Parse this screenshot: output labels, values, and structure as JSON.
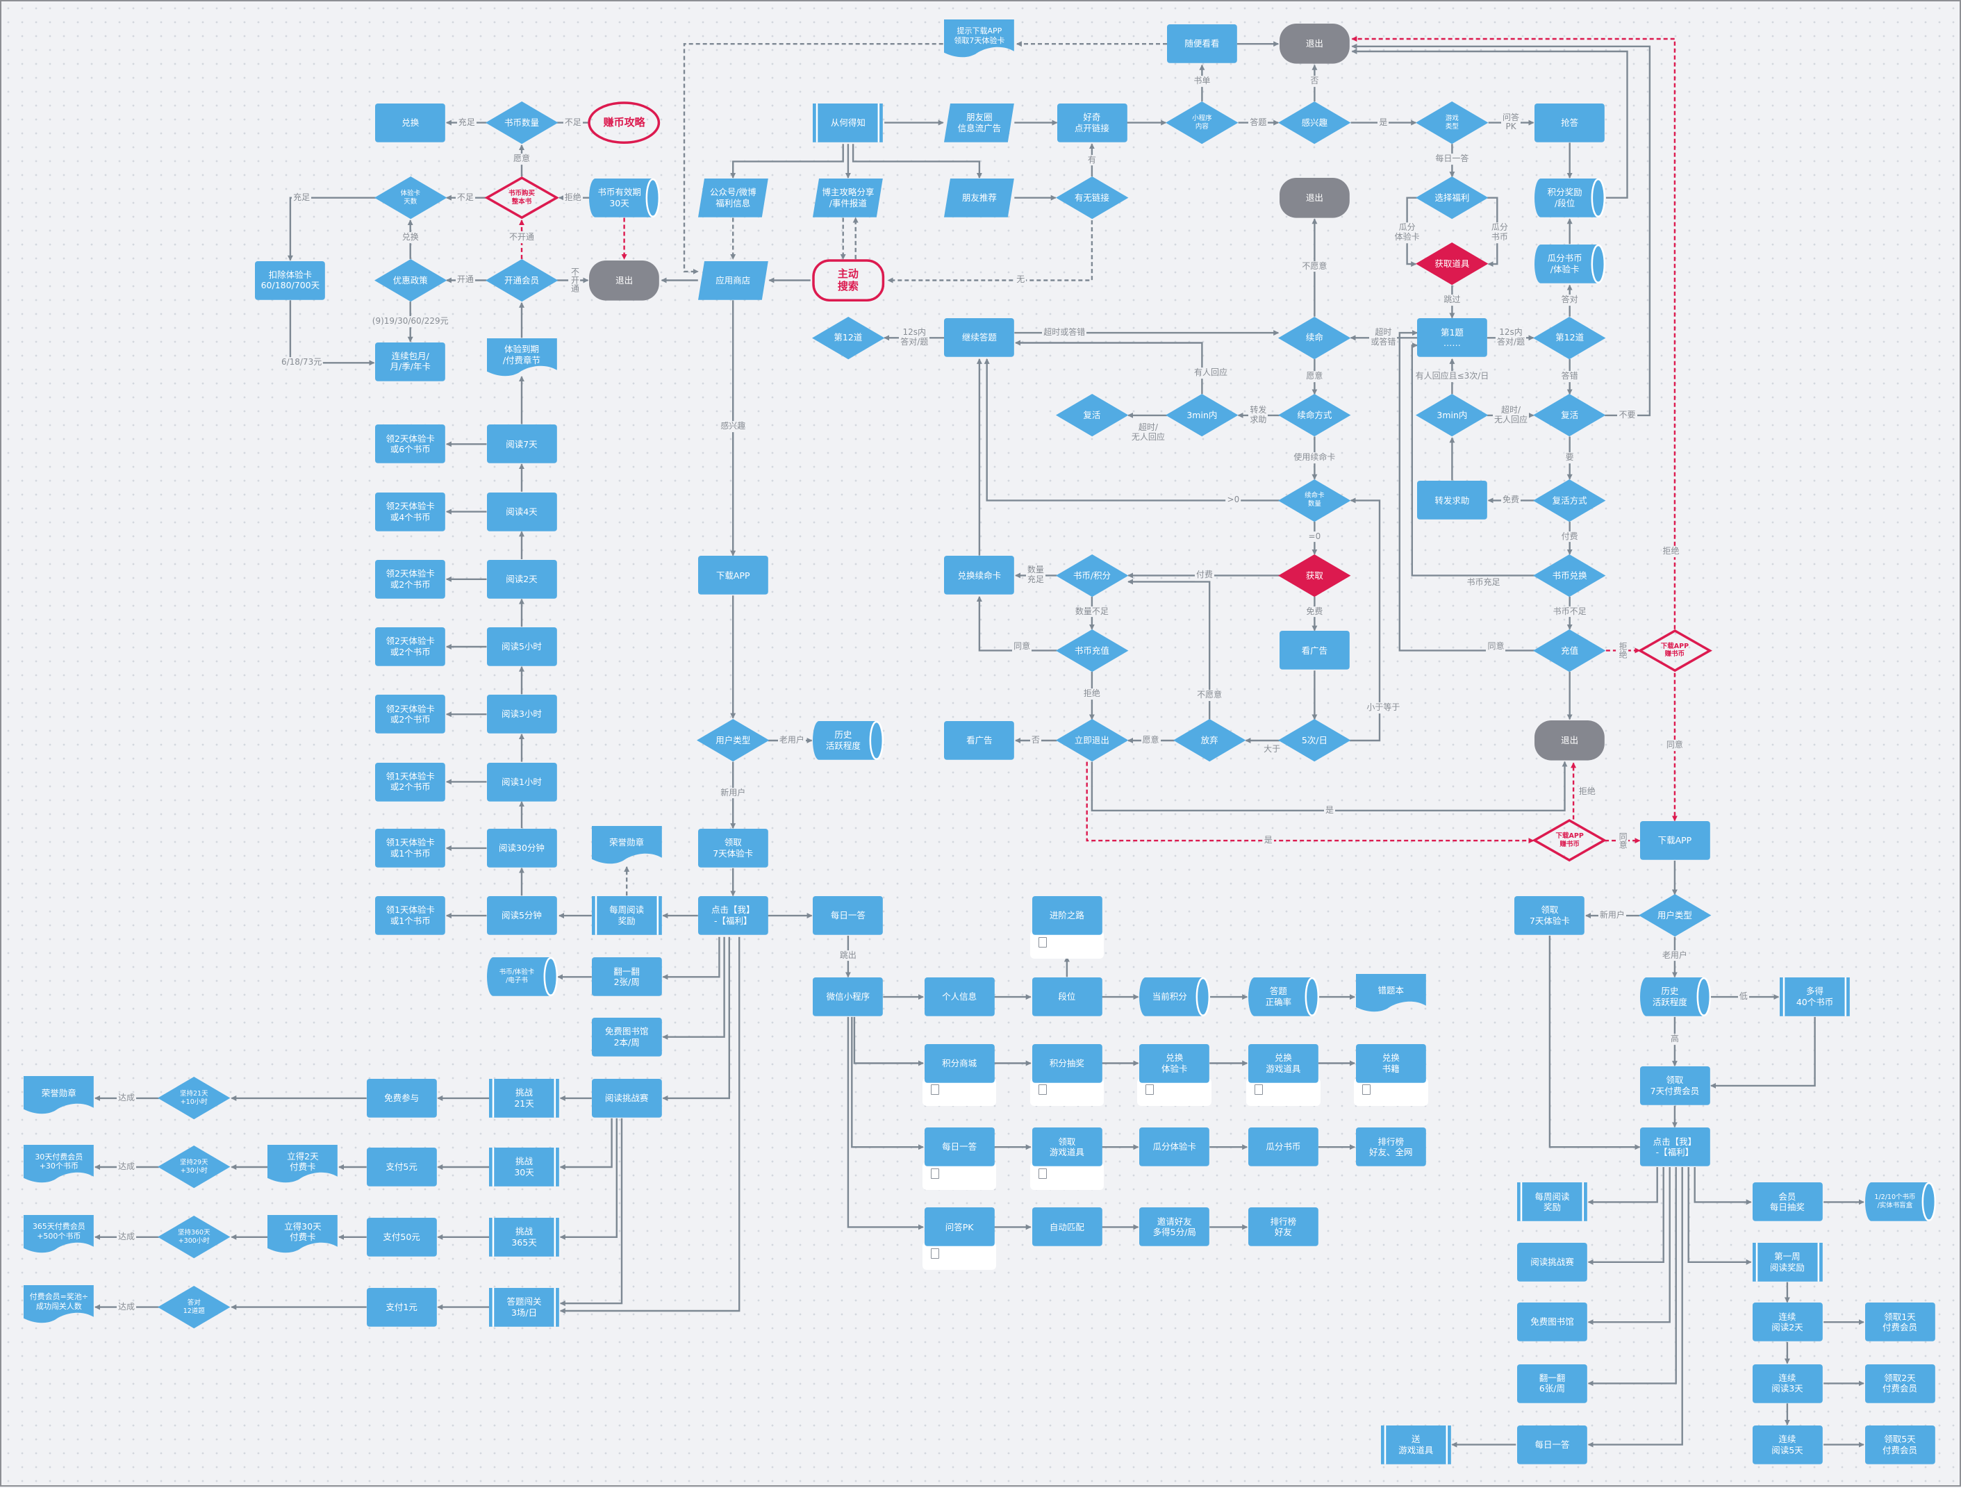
{
  "colors": {
    "process": "#52abe3",
    "terminal": "#85878f",
    "highlight": "#dc1a4f",
    "connector": "#7d8893"
  },
  "nodes": {
    "dh": "兑换",
    "sbsl": "书币数量",
    "zbgl": "赚币攻略",
    "tyk": "体验卡\n天数",
    "sbgm": "书币购买\n整本书",
    "sbyx": "书币有效期\n30天",
    "kc": "扣除体验卡\n60/180/700天",
    "yhzc": "优惠政策",
    "kthy": "开通会员",
    "tc1": "退出",
    "lxby": "连续包月/\n月/季/年卡",
    "tydq": "体验到期\n/付费章节",
    "r7d": "阅读7天",
    "r4d": "阅读4天",
    "r2d": "阅读2天",
    "r5h": "阅读5小时",
    "r3h": "阅读3小时",
    "r1h": "阅读1小时",
    "r30m": "阅读30分钟",
    "r5m": "阅读5分钟",
    "w7d": "领2天体验卡\n或6个书币",
    "w4d": "领2天体验卡\n或4个书币",
    "w2d": "领2天体验卡\n或2个书币",
    "w5h": "领2天体验卡\n或2个书币",
    "w3h": "领2天体验卡\n或2个书币",
    "w1h": "领1天体验卡\n或2个书币",
    "w30m": "领1天体验卡\n或1个书币",
    "w5m": "领1天体验卡\n或1个书币",
    "rysz1": "荣誉勋章",
    "mzyd1": "每周阅读\n奖励",
    "sbtyk": "书币/体验卡\n/电子书",
    "fyf1": "翻一翻\n2张/周",
    "mftsg1": "免费图书馆\n2本/周",
    "ydtzs1": "阅读挑战赛",
    "tz21": "挑战\n21天",
    "mfcy": "免费参与",
    "jc21": "坚持21天\n+10小时",
    "rysz2": "荣誉勋章",
    "tz30": "挑战\n30天",
    "zf5": "支付5元",
    "ld2": "立得2天\n付费卡",
    "jc29": "坚持29天\n+30小时",
    "hy30": "30天付费会员\n+30个书币",
    "tz365": "挑战\n365天",
    "zf50": "支付50元",
    "ld30": "立得30天\n付费卡",
    "jc360": "坚持360天\n+300小时",
    "hy365": "365天付费会员\n+500个书币",
    "dtcg": "答题闯关\n3场/日",
    "zf1": "支付1元",
    "dd12": "答对\n12道题",
    "ffhy": "付费会员=奖池÷\n成功闯关人数",
    "chdz": "从何得知",
    "pyq": "朋友圈\n信息流广告",
    "hq": "好奇\n点开链接",
    "xcx": "小程序\n内容",
    "gxq": "感兴趣",
    "yxlx": "游戏\n类型",
    "qd": "抢答",
    "tsxz": "提示下载APP\n领取7天体验卡",
    "sbkk": "随便看看",
    "tc2": "退出",
    "gzh": "公众号/微博\n福利信息",
    "bz": "博主攻略分享\n/事件报道",
    "pytj": "朋友推荐",
    "ywlj": "有无链接",
    "tc3": "退出",
    "xzfl": "选择福利",
    "jfjl": "积分奖励\n/段位",
    "yysd": "应用商店",
    "zdss": "主动\n搜索",
    "hqdj": "获取道具",
    "gfsb": "瓜分书币\n/体验卡",
    "d12a": "第12道",
    "jxdt": "继续答题",
    "xm": "续命",
    "d1t": "第1题\n……",
    "d12b": "第12道",
    "fh1": "复活",
    "m3a": "3min内",
    "xmfs": "续命方式",
    "m3b": "3min内",
    "fh2": "复活",
    "xmksl": "续命卡\n数量",
    "zfqz": "转发求助",
    "fhfs": "复活方式",
    "dhxmk": "兑换续命卡",
    "sbjf": "书币/积分",
    "hq2": "获取",
    "sbdh": "书币兑换",
    "xzapp1": "下载APP",
    "sbcz": "书币充值",
    "kgg1": "看广告",
    "cz": "充值",
    "xzzb1": "下载APP\n赚书币",
    "yhlx1": "用户类型",
    "hsyy1": "历史\n活跃程度",
    "kgg2": "看广告",
    "ljtc": "立即退出",
    "fq": "放弃",
    "c5": "5次/日",
    "tc4": "退出",
    "lq7a": "领取\n7天体验卡",
    "xzzb2": "下载APP\n赚书币",
    "xzapp2": "下载APP",
    "djwfl1": "点击【我】\n-【福利】",
    "mryd1": "每日一答",
    "jjzl": "进阶之路",
    "wxxcx": "微信小程序",
    "grxx": "个人信息",
    "dw": "段位",
    "dqjf": "当前积分",
    "dtzql": "答题\n正确率",
    "ctb": "错题本",
    "jfsc": "积分商城",
    "jfcj": "积分抽奖",
    "dhtyk": "兑换\n体验卡",
    "dhyxdj": "兑换\n游戏道具",
    "dhsj": "兑换\n书籍",
    "mryd2": "每日一答",
    "lqyxdj": "领取\n游戏道具",
    "gftyk": "瓜分体验卡",
    "gfsb2": "瓜分书币",
    "phb1": "排行榜\n好友、全网",
    "wdpk": "问答PK",
    "zdpp": "自动匹配",
    "yqhy": "邀请好友\n多得5分/局",
    "phb2": "排行榜\n好友",
    "lq7b": "领取\n7天体验卡",
    "yhlx2": "用户类型",
    "hsyy2": "历史\n活跃程度",
    "dd40": "多得\n40个书币",
    "lqff7": "领取\n7天付费会员",
    "djwfl2": "点击【我】\n-【福利】",
    "mzyd2": "每周阅读\n奖励",
    "hymrcj": "会员\n每日抽奖",
    "mh": "1/2/10个书币\n/实体书盲盒",
    "ydtzs2": "阅读挑战赛",
    "dyz": "第一周\n阅读奖励",
    "mftsg2": "免费图书馆",
    "lx2": "连续\n阅读2天",
    "lq1": "领取1天\n付费会员",
    "fyf2": "翻一翻\n6张/周",
    "lx3": "连续\n阅读3天",
    "lq2": "领取2天\n付费会员",
    "syxdj": "送\n游戏道具",
    "mryd3": "每日一答",
    "lx5": "连续\n阅读5天",
    "lq5": "领取5天\n付费会员"
  },
  "edge_labels": [
    "充足",
    "不足",
    "愿意",
    "充足",
    "不足",
    "拒绝",
    "兑换",
    "不开通",
    "开通",
    "不开通",
    "(9)19/30/60/229元",
    "6/18/73元",
    "达成",
    "达成",
    "达成",
    "达成",
    "答题",
    "是",
    "问答\nPK",
    "书单",
    "否",
    "有",
    "无",
    "感兴趣",
    "老用户",
    "新用户",
    "跳出",
    "拒绝",
    "每日一答",
    "瓜分\n体验卡",
    "瓜分\n书币",
    "跳过",
    "答对",
    "12s内\n答对/题",
    "超时\n或答错",
    "答错",
    "要",
    "免费",
    "有人回应且≤3次/日",
    "超时/\n无人回应",
    "付费",
    "书币充足",
    "书币不足",
    "同意",
    "拒绝",
    "不要",
    "同意",
    "是",
    "是",
    "拒绝",
    "同意",
    "新用户",
    "老用户",
    "低",
    "高",
    "12s内\n答对/题",
    "超时或答错",
    "有人回应",
    "愿意",
    "不愿意",
    "转发\n求助",
    "超时/\n无人回应",
    "使用续命卡",
    ">0",
    "=0",
    "付费",
    "数量\n充足",
    "数量不足",
    "同意",
    "拒绝",
    "免费",
    "大于",
    "小于等于",
    "愿意",
    "不愿意",
    "否"
  ]
}
